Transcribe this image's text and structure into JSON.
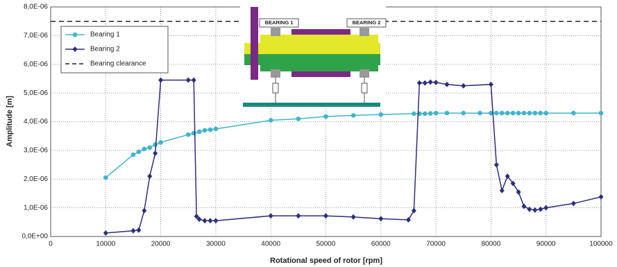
{
  "chart_data": {
    "type": "line",
    "x_label": "Rotational speed of rotor [rpm]",
    "y_label": "Amplitude [m]",
    "xlim": [
      0,
      100000
    ],
    "xticks": [
      0,
      10000,
      20000,
      30000,
      40000,
      50000,
      60000,
      70000,
      80000,
      90000,
      100000
    ],
    "ylim": [
      0,
      8e-06
    ],
    "yticks": [
      {
        "value": 0,
        "label": "0,0E+00"
      },
      {
        "value": 1e-06,
        "label": "1,0E-06"
      },
      {
        "value": 2e-06,
        "label": "2,0E-06"
      },
      {
        "value": 3e-06,
        "label": "3,0E-06"
      },
      {
        "value": 4e-06,
        "label": "4,0E-06"
      },
      {
        "value": 5e-06,
        "label": "5,0E-06"
      },
      {
        "value": 6e-06,
        "label": "6,0E-06"
      },
      {
        "value": 7e-06,
        "label": "7,0E-06"
      },
      {
        "value": 8e-06,
        "label": "8,0E-06"
      }
    ],
    "grid": true,
    "legend": "top-left",
    "inset_labels": [
      "BEARING 1",
      "BEARING 2"
    ],
    "series": [
      {
        "name": "Bearing 1",
        "color": "#3db5cc",
        "marker": "circle",
        "dashed": false,
        "x": [
          10000,
          15000,
          16000,
          17000,
          18000,
          19000,
          20000,
          25000,
          26000,
          27000,
          28000,
          29000,
          30000,
          40000,
          45000,
          50000,
          55000,
          60000,
          66000,
          67000,
          68000,
          69000,
          70000,
          72000,
          75000,
          78000,
          80000,
          81000,
          82000,
          83000,
          84000,
          85000,
          86000,
          87000,
          88000,
          89000,
          90000,
          95000,
          100000
        ],
        "values": [
          2.05e-06,
          2.85e-06,
          2.95e-06,
          3.05e-06,
          3.1e-06,
          3.2e-06,
          3.28e-06,
          3.55e-06,
          3.6e-06,
          3.65e-06,
          3.7e-06,
          3.72e-06,
          3.75e-06,
          4.05e-06,
          4.1e-06,
          4.18e-06,
          4.22e-06,
          4.25e-06,
          4.28e-06,
          4.28e-06,
          4.28e-06,
          4.29e-06,
          4.3e-06,
          4.3e-06,
          4.3e-06,
          4.3e-06,
          4.3e-06,
          4.3e-06,
          4.3e-06,
          4.3e-06,
          4.3e-06,
          4.3e-06,
          4.3e-06,
          4.3e-06,
          4.3e-06,
          4.3e-06,
          4.3e-06,
          4.3e-06,
          4.3e-06
        ]
      },
      {
        "name": "Bearing 2",
        "color": "#2b2e7d",
        "marker": "diamond",
        "dashed": false,
        "x": [
          10000,
          15000,
          16000,
          17000,
          18000,
          19000,
          20000,
          25000,
          26000,
          26500,
          27000,
          28000,
          29000,
          30000,
          40000,
          45000,
          50000,
          55000,
          60000,
          65000,
          66000,
          67000,
          68000,
          69000,
          70000,
          72000,
          75000,
          80000,
          81000,
          82000,
          83000,
          84000,
          85000,
          86000,
          87000,
          88000,
          89000,
          90000,
          95000,
          100000
        ],
        "values": [
          1.2e-07,
          2e-07,
          2.2e-07,
          9e-07,
          2.1e-06,
          2.9e-06,
          5.45e-06,
          5.45e-06,
          5.45e-06,
          7e-07,
          6e-07,
          5.5e-07,
          5.5e-07,
          5.5e-07,
          7.2e-07,
          7.2e-07,
          7.2e-07,
          6.8e-07,
          6.2e-07,
          5.8e-07,
          9e-07,
          5.35e-06,
          5.35e-06,
          5.38e-06,
          5.37e-06,
          5.3e-06,
          5.25e-06,
          5.3e-06,
          2.5e-06,
          1.6e-06,
          2.1e-06,
          1.85e-06,
          1.55e-06,
          1.05e-06,
          9.5e-07,
          9.2e-07,
          9.5e-07,
          1e-06,
          1.15e-06,
          1.38e-06
        ]
      },
      {
        "name": "Bearing clearance",
        "color": "#222222",
        "marker": "none",
        "dashed": true,
        "x": [
          0,
          100000
        ],
        "values": [
          7.5e-06,
          7.5e-06
        ]
      }
    ]
  }
}
